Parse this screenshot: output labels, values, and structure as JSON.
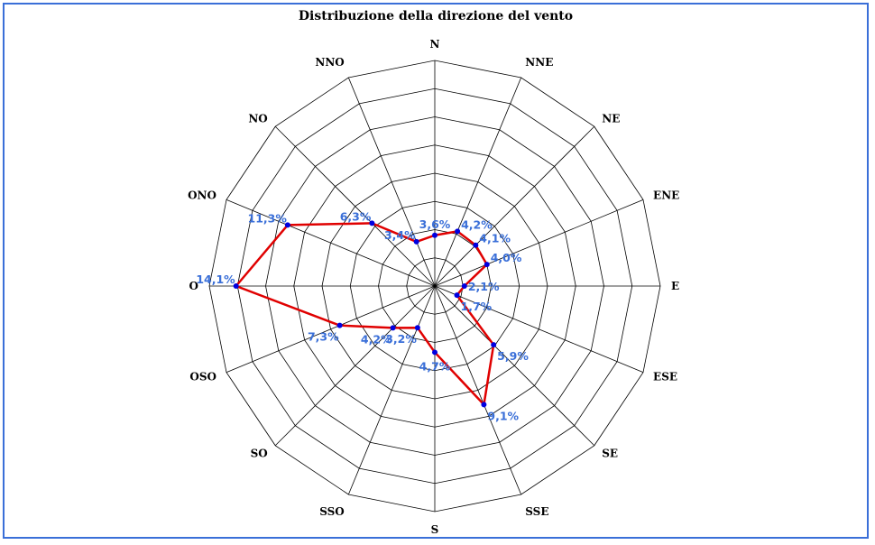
{
  "chart_data": {
    "type": "radar",
    "title": "Distribuzione della direzione del vento",
    "categories": [
      "N",
      "NNE",
      "NE",
      "ENE",
      "E",
      "ESE",
      "SE",
      "SSE",
      "S",
      "SSO",
      "SO",
      "OSO",
      "O",
      "ONO",
      "NO",
      "NNO"
    ],
    "values": [
      3.6,
      4.2,
      4.1,
      4.0,
      2.1,
      1.7,
      5.9,
      9.1,
      4.7,
      3.2,
      4.2,
      7.3,
      14.1,
      11.3,
      6.3,
      3.4
    ],
    "value_labels": [
      "3,6%",
      "4,2%",
      "4,1%",
      "4,0%",
      "2,1%",
      "1,7%",
      "5,9%",
      "9,1%",
      "4,7%",
      "3,2%",
      "4,2%",
      "7,3%",
      "14,1%",
      "11,3%",
      "6,3%",
      "3,4%"
    ],
    "rlim": [
      0,
      16
    ],
    "grid_step": 2,
    "series_color": "#e00000",
    "marker_color": "#0000e0",
    "label_color": "#3a6fd8"
  }
}
